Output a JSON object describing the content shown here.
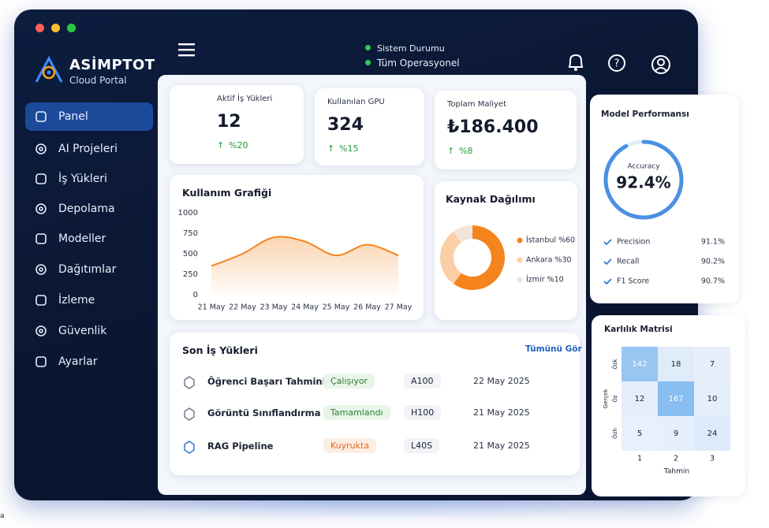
{
  "brand": {
    "name": "ASİMPTOT",
    "subtitle": "Cloud Portal"
  },
  "sidebar": [
    "Panel",
    "AI Projeleri",
    "İş Yükleri",
    "Depolama",
    "Modeller",
    "Dağıtımlar",
    "İzleme",
    "Güvenlik",
    "Ayarlar"
  ],
  "status": {
    "label": "Sistem Durumu",
    "value": "Tüm Operasyonel"
  },
  "kpis": [
    {
      "title": "Aktif İş Yükleri",
      "value": "12",
      "change": "%20"
    },
    {
      "title": "Kullanılan GPU",
      "value": "324",
      "change": "%15"
    },
    {
      "title": "Toplam Maliyet",
      "value": "₺186.400",
      "change": "%8"
    }
  ],
  "usage_chart": {
    "type": "line",
    "title": "Kullanım Grafiği",
    "categories": [
      "21 May",
      "22 May",
      "23 May",
      "24 May",
      "25 May",
      "26 May",
      "27 May"
    ],
    "values": [
      350,
      500,
      700,
      650,
      480,
      610,
      480
    ],
    "color": "#f5841f",
    "ylim": [
      0,
      1000
    ],
    "yticks": [
      0,
      250,
      500,
      750,
      1000
    ]
  },
  "resources": {
    "type": "pie",
    "title": "Kaynak Dağılımı",
    "categories": [
      "İstanbul %60",
      "Ankara %30",
      "İzmir %10"
    ],
    "values": [
      60,
      30,
      10
    ],
    "colors": [
      "#f5841f",
      "#fbcfa5",
      "#f1e4da"
    ]
  },
  "model_performance": {
    "title": "Model Performansı",
    "gauge_title": "Accuracy",
    "accuracy": {
      "value": 92.4,
      "label": "92.4%"
    },
    "color": "#4a90e2",
    "metrics": [
      {
        "name": "Precision",
        "value": "91.1%"
      },
      {
        "name": "Recall",
        "value": "90.2%"
      },
      {
        "name": "F1 Score",
        "value": "90.7%"
      }
    ]
  },
  "confusion_matrix": {
    "type": "heatmap",
    "title": "Karlılık Matrisi",
    "x_label": "Tahmin",
    "y_label": "Gerçek",
    "x_categories": [
      "1",
      "2",
      "3"
    ],
    "y_categories": [
      "Özk",
      "Öz",
      "Özh"
    ],
    "values": [
      [
        142,
        18,
        7
      ],
      [
        12,
        167,
        10
      ],
      [
        5,
        9,
        24
      ]
    ]
  },
  "recent": {
    "title": "Son İş Yükleri",
    "link": "Tümünü Gör",
    "rows": [
      [
        "Öğrenci Başarı Tahmini",
        "Çalışıyor",
        "A100",
        "22 May 2025"
      ],
      [
        "Görüntü Sınıflandırma",
        "Tamamlandı",
        "H100",
        "21 May 2025"
      ],
      [
        "RAG Pipeline",
        "Kuyrukta",
        "L40S",
        "21 May 2025"
      ]
    ]
  },
  "footnote": "a"
}
